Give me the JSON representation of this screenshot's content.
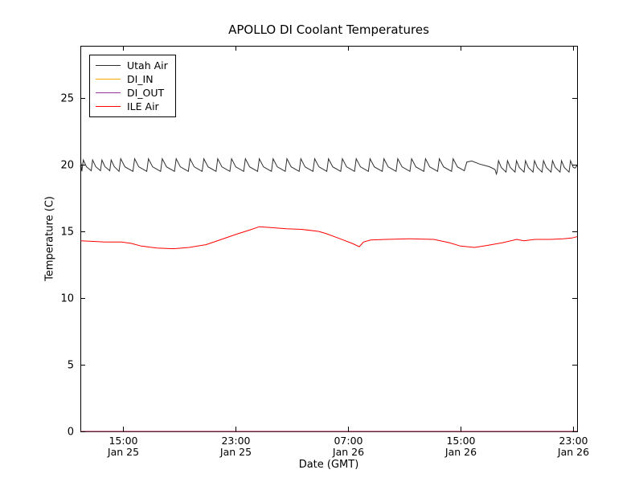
{
  "chart_data": {
    "type": "line",
    "title": "APOLLO DI Coolant Temperatures",
    "xlabel": "Date (GMT)",
    "ylabel": "Temperature (C)",
    "x_axis_unit": "hours since Jan 25 00:00 GMT",
    "xlim": [
      11.97,
      47.29
    ],
    "ylim": [
      0,
      28.92
    ],
    "grid": false,
    "legend_position": "upper-left",
    "frame_color": "#000000",
    "x_ticks": [
      {
        "t": 15,
        "time": "15:00",
        "date": "Jan 25"
      },
      {
        "t": 23,
        "time": "23:00",
        "date": "Jan 25"
      },
      {
        "t": 31,
        "time": "07:00",
        "date": "Jan 26"
      },
      {
        "t": 39,
        "time": "15:00",
        "date": "Jan 26"
      },
      {
        "t": 47,
        "time": "23:00",
        "date": "Jan 26"
      }
    ],
    "y_ticks": [
      0,
      5,
      10,
      15,
      20,
      25
    ],
    "series": [
      {
        "name": "Utah Air",
        "color": "#2e2e2e",
        "line_width": 1,
        "pattern": "sawtooth (~1 h refrigeration cycles between ~19.5 and ~20.45 C, long slow decay Jan 26 ~15:15-17:30, faster ~0.64 h cycles afterwards)",
        "pre_points": [
          [
            11.97,
            19.85
          ],
          [
            12.02,
            20.15
          ],
          [
            12.05,
            19.6
          ]
        ],
        "segments": [
          {
            "type": "cycles",
            "t_start": 12.08,
            "t_end": 14.6,
            "period_h": 0.66,
            "rise_h": 0.1,
            "mid_dt": 0.22,
            "mid_frac": 0.38,
            "trough": 19.55,
            "peak": 20.35
          },
          {
            "type": "cycles",
            "t_start": 14.72,
            "t_end": 39.2,
            "period_h": 0.985,
            "rise_h": 0.12,
            "mid_dt": 0.3,
            "mid_frac": 0.36,
            "trough": 19.5,
            "peak": 20.45
          },
          {
            "type": "points",
            "points": [
              [
                39.27,
                19.55
              ],
              [
                39.45,
                20.2
              ],
              [
                39.8,
                20.28
              ],
              [
                40.35,
                20.05
              ],
              [
                41.05,
                19.85
              ],
              [
                41.45,
                19.65
              ],
              [
                41.55,
                19.3
              ]
            ]
          },
          {
            "type": "cycles",
            "t_start": 41.6,
            "t_end": 47.1,
            "period_h": 0.64,
            "rise_h": 0.1,
            "mid_dt": 0.2,
            "mid_frac": 0.4,
            "trough": 19.45,
            "peak": 20.3
          },
          {
            "type": "points",
            "points": [
              [
                47.15,
                19.75
              ],
              [
                47.29,
                19.95
              ]
            ]
          }
        ]
      },
      {
        "name": "DI_IN",
        "color": "#ffa500",
        "line_width": 1.2,
        "points": [
          [
            11.97,
            0
          ],
          [
            47.29,
            0
          ]
        ]
      },
      {
        "name": "DI_OUT",
        "color": "#993399",
        "line_width": 1.2,
        "opacity": 0.8,
        "points": [
          [
            11.97,
            0
          ],
          [
            47.29,
            0
          ]
        ]
      },
      {
        "name": "ILE Air",
        "color": "#ff0000",
        "line_width": 1,
        "points": [
          [
            12.0,
            14.3
          ],
          [
            12.9,
            14.25
          ],
          [
            13.7,
            14.2
          ],
          [
            14.9,
            14.2
          ],
          [
            15.6,
            14.1
          ],
          [
            16.3,
            13.9
          ],
          [
            17.4,
            13.75
          ],
          [
            18.6,
            13.7
          ],
          [
            19.7,
            13.8
          ],
          [
            20.9,
            14.0
          ],
          [
            22.0,
            14.4
          ],
          [
            23.1,
            14.8
          ],
          [
            24.0,
            15.1
          ],
          [
            24.7,
            15.35
          ],
          [
            25.4,
            15.3
          ],
          [
            26.6,
            15.2
          ],
          [
            27.7,
            15.15
          ],
          [
            28.9,
            15.0
          ],
          [
            29.4,
            14.85
          ],
          [
            30.3,
            14.5
          ],
          [
            31.3,
            14.1
          ],
          [
            31.8,
            13.85
          ],
          [
            32.1,
            14.2
          ],
          [
            32.6,
            14.35
          ],
          [
            33.7,
            14.4
          ],
          [
            35.4,
            14.45
          ],
          [
            37.1,
            14.4
          ],
          [
            38.2,
            14.15
          ],
          [
            39.0,
            13.9
          ],
          [
            40.0,
            13.8
          ],
          [
            40.9,
            13.95
          ],
          [
            42.0,
            14.15
          ],
          [
            43.0,
            14.4
          ],
          [
            43.5,
            14.3
          ],
          [
            44.3,
            14.4
          ],
          [
            45.4,
            14.4
          ],
          [
            46.3,
            14.45
          ],
          [
            46.9,
            14.5
          ],
          [
            47.29,
            14.6
          ]
        ]
      }
    ]
  }
}
